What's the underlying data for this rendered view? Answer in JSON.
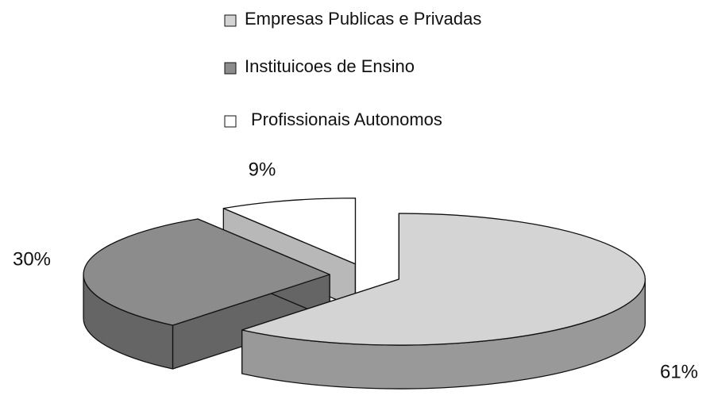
{
  "chart_data": {
    "type": "pie",
    "categories": [
      "Empresas Publicas e Privadas",
      "Instituicoes de Ensino",
      "Profissionais Autonomos"
    ],
    "values": [
      61,
      30,
      9
    ],
    "value_labels": [
      "61%",
      "30%",
      "9%"
    ],
    "colors": [
      "#d4d4d4",
      "#8c8c8c",
      "#ffffff"
    ],
    "legend": "top"
  }
}
